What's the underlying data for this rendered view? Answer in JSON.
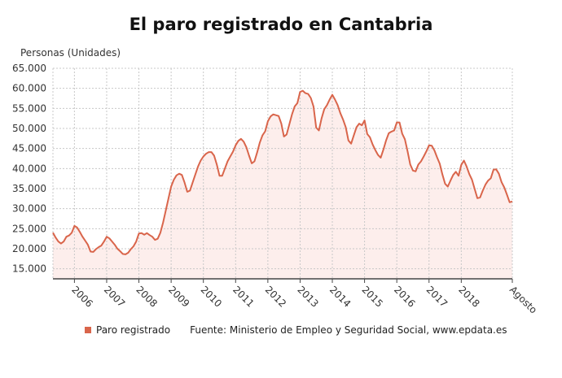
{
  "chart_data": {
    "type": "area",
    "title": "El paro registrado en Cantabria",
    "ylabel": "Personas (Unidades)",
    "xlabel": "",
    "start_month": "2005-05",
    "frequency": "monthly",
    "ylim": [
      12500,
      65000
    ],
    "yticks": [
      15000,
      20000,
      25000,
      30000,
      35000,
      40000,
      45000,
      50000,
      55000,
      60000,
      65000
    ],
    "ytick_labels": [
      "15.000",
      "20.000",
      "25.000",
      "30.000",
      "35.000",
      "40.000",
      "45.000",
      "50.000",
      "55.000",
      "60.000",
      "65.000"
    ],
    "xtick_labels": [
      "2006",
      "2007",
      "2008",
      "2009",
      "2010",
      "2011",
      "2012",
      "2013",
      "2014",
      "2015",
      "2016",
      "2017",
      "2018",
      "Agosto"
    ],
    "xtick_months": [
      "2006-01",
      "2007-01",
      "2008-01",
      "2009-01",
      "2010-01",
      "2011-01",
      "2012-01",
      "2013-01",
      "2014-01",
      "2015-01",
      "2016-01",
      "2017-01",
      "2018-01",
      "2019-08"
    ],
    "grid": true,
    "legend_position": "bottom-left",
    "series": [
      {
        "name": "Paro registrado",
        "color": "#d9654b",
        "fill": "#fdeeec",
        "values": [
          24000,
          22800,
          21800,
          21300,
          21800,
          23000,
          23300,
          24000,
          25700,
          25300,
          24200,
          23000,
          22000,
          21000,
          19300,
          19200,
          19900,
          20400,
          20800,
          21800,
          23000,
          22600,
          21800,
          21000,
          20000,
          19400,
          18700,
          18600,
          19000,
          19900,
          20600,
          21800,
          23800,
          23900,
          23500,
          23900,
          23400,
          23000,
          22200,
          22500,
          24000,
          26500,
          29500,
          32500,
          35500,
          37200,
          38300,
          38700,
          38400,
          36500,
          34200,
          34500,
          36500,
          38500,
          40500,
          42000,
          43000,
          43700,
          44100,
          44100,
          43200,
          41000,
          38200,
          38200,
          40000,
          41800,
          43000,
          44200,
          45800,
          46900,
          47400,
          46700,
          45300,
          43200,
          41300,
          41800,
          44000,
          46500,
          48300,
          49300,
          51800,
          53000,
          53500,
          53300,
          53100,
          51200,
          48000,
          48500,
          51000,
          53500,
          55500,
          56300,
          59100,
          59400,
          58800,
          58600,
          57600,
          55500,
          50200,
          49500,
          52500,
          54800,
          55800,
          57200,
          58400,
          57200,
          55800,
          53800,
          52200,
          50300,
          47000,
          46200,
          48300,
          50300,
          51200,
          50800,
          52000,
          48600,
          47800,
          46000,
          44600,
          43400,
          42700,
          44700,
          47000,
          48800,
          49200,
          49500,
          51500,
          51500,
          48700,
          47300,
          44300,
          41000,
          39500,
          39300,
          41000,
          41800,
          43000,
          44300,
          45800,
          45700,
          44500,
          42800,
          41200,
          38500,
          36200,
          35500,
          37000,
          38400,
          39200,
          38200,
          40900,
          42000,
          40500,
          38600,
          37200,
          34900,
          32600,
          32800,
          34500,
          36000,
          37000,
          37600,
          39700,
          39800,
          38700,
          36600,
          35300,
          33500,
          31600,
          31800
        ]
      }
    ],
    "source": "Fuente: Ministerio de Empleo y Seguridad Social, www.epdata.es"
  }
}
